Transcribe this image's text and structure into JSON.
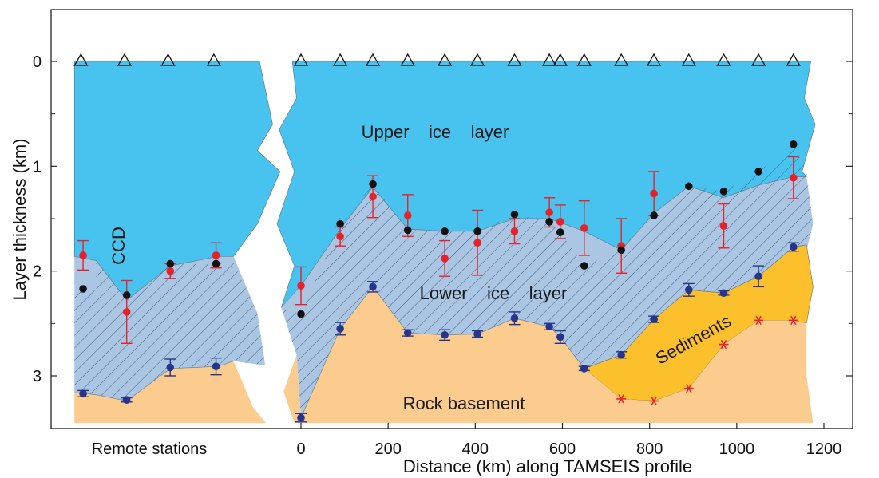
{
  "chart_data": {
    "type": "area",
    "xlabel": "Distance (km) along TAMSEIS profile",
    "ylabel": "Layer thickness (km)",
    "xlim": [
      -550,
      1200
    ],
    "ylim": [
      3.55,
      -0.55
    ],
    "x_ticks": [
      0,
      200,
      400,
      600,
      800,
      1000,
      1200
    ],
    "y_ticks": [
      0,
      1,
      2,
      3
    ],
    "remote_label": "Remote stations",
    "labels": {
      "upper_ice": "Upper    ice    layer",
      "lower_ice": "Lower    ice    layer",
      "rock": "Rock basement",
      "sediments": "Sediments",
      "ccd": "CCD"
    },
    "colors": {
      "upper_ice": "#48c3ef",
      "lower_ice": "#aac6e3",
      "rock": "#fccb8e",
      "sediments": "#fbc02b",
      "red": "#e8202a",
      "blue": "#27348b",
      "black": "#111111"
    },
    "remote": {
      "stations_x": [
        -505,
        -405,
        -305,
        -200
      ],
      "black_points": [
        [
          -500,
          2.17
        ],
        [
          -400,
          2.23
        ],
        [
          -300,
          1.93
        ],
        [
          -195,
          1.93
        ]
      ],
      "red_points": [
        [
          -500,
          1.85,
          0.14
        ],
        [
          -400,
          2.39,
          0.3
        ],
        [
          -300,
          2.0,
          0.07
        ],
        [
          -195,
          1.85,
          0.12
        ]
      ],
      "blue_points": [
        [
          -500,
          3.17,
          0.03
        ],
        [
          -400,
          3.23,
          0.02
        ],
        [
          -300,
          2.92,
          0.08
        ],
        [
          -195,
          2.91,
          0.08
        ]
      ]
    },
    "profile": {
      "stations_x": [
        0,
        90,
        165,
        245,
        330,
        405,
        490,
        570,
        595,
        650,
        735,
        810,
        890,
        970,
        1050,
        1130
      ],
      "black_points": [
        [
          0,
          2.41
        ],
        [
          90,
          1.55
        ],
        [
          165,
          1.17
        ],
        [
          245,
          1.61
        ],
        [
          330,
          1.62
        ],
        [
          405,
          1.62
        ],
        [
          490,
          1.46
        ],
        [
          570,
          1.53
        ],
        [
          595,
          1.63
        ],
        [
          650,
          1.95
        ],
        [
          735,
          1.8
        ],
        [
          810,
          1.47
        ],
        [
          890,
          1.19
        ],
        [
          970,
          1.24
        ],
        [
          1050,
          1.05
        ],
        [
          1130,
          0.79
        ]
      ],
      "red_points": [
        [
          0,
          2.14,
          0.18
        ],
        [
          90,
          1.67,
          0.09
        ],
        [
          165,
          1.29,
          0.2
        ],
        [
          245,
          1.47,
          0.2
        ],
        [
          330,
          1.88,
          0.17
        ],
        [
          405,
          1.73,
          0.31
        ],
        [
          490,
          1.62,
          0.12
        ],
        [
          570,
          1.44,
          0.14
        ],
        [
          595,
          1.53,
          0.16
        ],
        [
          650,
          1.59,
          0.26
        ],
        [
          735,
          1.76,
          0.26
        ],
        [
          810,
          1.26,
          0.21
        ],
        [
          970,
          1.57,
          0.21
        ],
        [
          1130,
          1.11,
          0.2
        ]
      ],
      "blue_points": [
        [
          0,
          3.4,
          0.04
        ],
        [
          90,
          2.55,
          0.06
        ],
        [
          165,
          2.15,
          0.05
        ],
        [
          245,
          2.59,
          0.03
        ],
        [
          330,
          2.61,
          0.05
        ],
        [
          405,
          2.6,
          0.03
        ],
        [
          490,
          2.45,
          0.06
        ],
        [
          570,
          2.53,
          0.03
        ],
        [
          595,
          2.63,
          0.06
        ],
        [
          650,
          2.93,
          0.02
        ],
        [
          735,
          2.8,
          0.03
        ],
        [
          810,
          2.46,
          0.03
        ],
        [
          890,
          2.18,
          0.06
        ],
        [
          970,
          2.21,
          0.02
        ],
        [
          1050,
          2.05,
          0.1
        ],
        [
          1130,
          1.77,
          0.04
        ]
      ],
      "sediment_base_points": [
        [
          735,
          3.22
        ],
        [
          810,
          3.24
        ],
        [
          890,
          3.12
        ],
        [
          970,
          2.7
        ],
        [
          1050,
          2.47
        ],
        [
          1130,
          2.47
        ]
      ]
    }
  }
}
